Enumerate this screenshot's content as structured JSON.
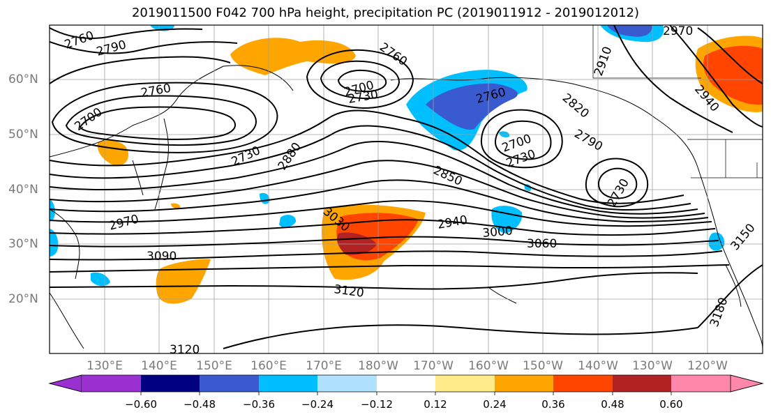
{
  "title": "2019011500 F042 700 hPa height, precipitation PC (2019011912 - 2019012012)",
  "lat_labels": [
    "60°N",
    "50°N",
    "40°N",
    "30°N",
    "20°N"
  ],
  "lon_labels": [
    "130°E",
    "140°E",
    "150°E",
    "160°E",
    "170°E",
    "180°W",
    "170°W",
    "160°W",
    "150°W",
    "140°W",
    "130°W",
    "120°W"
  ],
  "colorbar": {
    "ticks": [
      "−0.60",
      "−0.48",
      "−0.36",
      "−0.24",
      "−0.12",
      "0.12",
      "0.24",
      "0.36",
      "0.48",
      "0.60"
    ],
    "colors": [
      "#9b30d0",
      "#000080",
      "#3a5bd0",
      "#00bfff",
      "#b0e2ff",
      "#ffffff",
      "#ffeb8a",
      "#ffa500",
      "#ff4500",
      "#b22222",
      "#ff88aa"
    ]
  },
  "contour_labels": [
    "2760",
    "2790",
    "2760",
    "2700",
    "2700",
    "2730",
    "2760",
    "2760",
    "2820",
    "2790",
    "2910",
    "2970",
    "2940",
    "2730",
    "2880",
    "2850",
    "2700",
    "2730",
    "2730",
    "2970",
    "3030",
    "2940",
    "3000",
    "3060",
    "3090",
    "3120",
    "3120",
    "3180",
    "3150"
  ]
}
